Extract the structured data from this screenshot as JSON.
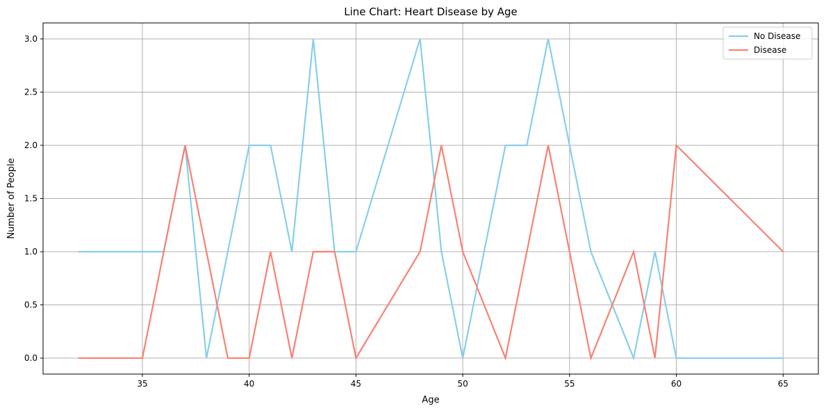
{
  "chart_data": {
    "type": "line",
    "title": "Line Chart: Heart Disease by Age",
    "xlabel": "Age",
    "ylabel": "Number of People",
    "xlim": [
      30.35,
      66.65
    ],
    "ylim": [
      -0.15,
      3.15
    ],
    "xticks": [
      35,
      40,
      45,
      50,
      55,
      60,
      65
    ],
    "yticks": [
      0.0,
      0.5,
      1.0,
      1.5,
      2.0,
      2.5,
      3.0
    ],
    "xtick_labels": [
      "35",
      "40",
      "45",
      "50",
      "55",
      "60",
      "65"
    ],
    "ytick_labels": [
      "0.0",
      "0.5",
      "1.0",
      "1.5",
      "2.0",
      "2.5",
      "3.0"
    ],
    "grid": true,
    "legend_position": "top-right",
    "series": [
      {
        "name": "No Disease",
        "color": "#87ceeb",
        "x": [
          32,
          35,
          36,
          37,
          38,
          39,
          40,
          41,
          42,
          43,
          44,
          45,
          48,
          49,
          50,
          52,
          53,
          54,
          56,
          58,
          59,
          60,
          65
        ],
        "y": [
          1,
          1,
          1,
          2,
          0,
          1,
          2,
          2,
          1,
          3,
          1,
          1,
          3,
          1,
          0,
          2,
          2,
          3,
          1,
          0,
          1,
          0,
          0
        ]
      },
      {
        "name": "Disease",
        "color": "#fa8072",
        "x": [
          32,
          35,
          37,
          39,
          40,
          41,
          42,
          43,
          44,
          45,
          48,
          49,
          50,
          52,
          54,
          56,
          58,
          59,
          60,
          65
        ],
        "y": [
          0,
          0,
          2,
          0,
          0,
          1,
          0,
          1,
          1,
          0,
          1,
          2,
          1,
          0,
          2,
          0,
          1,
          0,
          2,
          1
        ]
      }
    ]
  }
}
